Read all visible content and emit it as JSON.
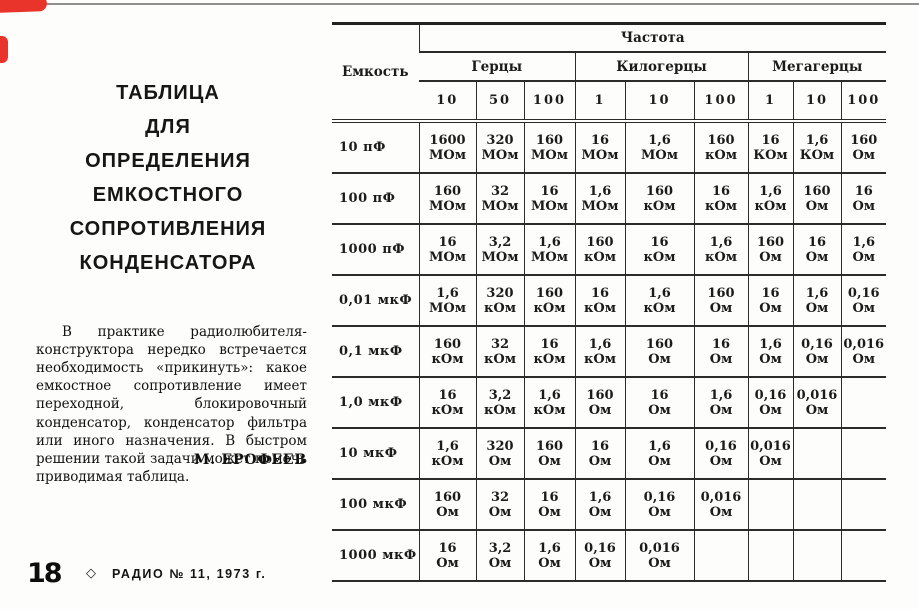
{
  "page": {
    "background": "#fdfdfc",
    "ink": "#1d1d1d",
    "accent_red": "#e8342a"
  },
  "left_column": {
    "title_lines": [
      "ТАБЛИЦА",
      "ДЛЯ",
      "ОПРЕДЕЛЕНИЯ",
      "ЕМКОСТНОГО",
      "СОПРОТИВЛЕНИЯ",
      "КОНДЕНСАТОРА"
    ],
    "intro_paragraph": "В практике радиолюбителя-конструктора нередко встречается необходимость «прикинуть»: какое емкостное сопротивление имеет переходной, блокировочный конденсатор, конденсатор фильтра или иного назначения. В быстром решении такой задачи может помочь приводимая таблица.",
    "author": "М. ЕРОФЕЕВ"
  },
  "table": {
    "capacity_header": "Емкость",
    "frequency_header": "Частота",
    "unit_groups": [
      {
        "label": "Герцы"
      },
      {
        "label": "Килогерцы"
      },
      {
        "label": "Мегагерцы"
      }
    ],
    "ticks": [
      "10",
      "50",
      "100",
      "1",
      "10",
      "100",
      "1",
      "10",
      "100"
    ],
    "rows": [
      {
        "capacity": "10 пФ",
        "cells": [
          {
            "value": "1600",
            "unit": "МОм"
          },
          {
            "value": "320",
            "unit": "МОм"
          },
          {
            "value": "160",
            "unit": "МОм"
          },
          {
            "value": "16",
            "unit": "МОм"
          },
          {
            "value": "1,6",
            "unit": "МОм"
          },
          {
            "value": "160",
            "unit": "кОм"
          },
          {
            "value": "16",
            "unit": "КОм"
          },
          {
            "value": "1,6",
            "unit": "КОм"
          },
          {
            "value": "160",
            "unit": "Ом"
          }
        ]
      },
      {
        "capacity": "100 пФ",
        "cells": [
          {
            "value": "160",
            "unit": "МОм"
          },
          {
            "value": "32",
            "unit": "МОм"
          },
          {
            "value": "16",
            "unit": "МОм"
          },
          {
            "value": "1,6",
            "unit": "МОм"
          },
          {
            "value": "160",
            "unit": "кОм"
          },
          {
            "value": "16",
            "unit": "кОм"
          },
          {
            "value": "1,6",
            "unit": "кОм"
          },
          {
            "value": "160",
            "unit": "Ом"
          },
          {
            "value": "16",
            "unit": "Ом"
          }
        ]
      },
      {
        "capacity": "1000 пФ",
        "cells": [
          {
            "value": "16",
            "unit": "МОм"
          },
          {
            "value": "3,2",
            "unit": "МОм"
          },
          {
            "value": "1,6",
            "unit": "МОм"
          },
          {
            "value": "160",
            "unit": "кОм"
          },
          {
            "value": "16",
            "unit": "кОм"
          },
          {
            "value": "1,6",
            "unit": "кОм"
          },
          {
            "value": "160",
            "unit": "Ом"
          },
          {
            "value": "16",
            "unit": "Ом"
          },
          {
            "value": "1,6",
            "unit": "Ом"
          }
        ]
      },
      {
        "capacity": "0,01 мкФ",
        "cells": [
          {
            "value": "1,6",
            "unit": "МОм"
          },
          {
            "value": "320",
            "unit": "кОм"
          },
          {
            "value": "160",
            "unit": "кОм"
          },
          {
            "value": "16",
            "unit": "кОм"
          },
          {
            "value": "1,6",
            "unit": "кОм"
          },
          {
            "value": "160",
            "unit": "Ом"
          },
          {
            "value": "16",
            "unit": "Ом"
          },
          {
            "value": "1,6",
            "unit": "Ом"
          },
          {
            "value": "0,16",
            "unit": "Ом"
          }
        ]
      },
      {
        "capacity": "0,1 мкФ",
        "cells": [
          {
            "value": "160",
            "unit": "кОм"
          },
          {
            "value": "32",
            "unit": "кОм"
          },
          {
            "value": "16",
            "unit": "кОм"
          },
          {
            "value": "1,6",
            "unit": "кОм"
          },
          {
            "value": "160",
            "unit": "Ом"
          },
          {
            "value": "16",
            "unit": "Ом"
          },
          {
            "value": "1,6",
            "unit": "Ом"
          },
          {
            "value": "0,16",
            "unit": "Ом"
          },
          {
            "value": "0,016",
            "unit": "Ом"
          }
        ]
      },
      {
        "capacity": "1,0 мкФ",
        "cells": [
          {
            "value": "16",
            "unit": "кОм"
          },
          {
            "value": "3,2",
            "unit": "кОм"
          },
          {
            "value": "1,6",
            "unit": "кОм"
          },
          {
            "value": "160",
            "unit": "Ом"
          },
          {
            "value": "16",
            "unit": "Ом"
          },
          {
            "value": "1,6",
            "unit": "Ом"
          },
          {
            "value": "0,16",
            "unit": "Ом"
          },
          {
            "value": "0,016",
            "unit": "Ом"
          },
          {
            "value": "",
            "unit": ""
          }
        ]
      },
      {
        "capacity": "10 мкФ",
        "cells": [
          {
            "value": "1,6",
            "unit": "кОм"
          },
          {
            "value": "320",
            "unit": "Ом"
          },
          {
            "value": "160",
            "unit": "Ом"
          },
          {
            "value": "16",
            "unit": "Ом"
          },
          {
            "value": "1,6",
            "unit": "Ом"
          },
          {
            "value": "0,16",
            "unit": "Ом"
          },
          {
            "value": "0,016",
            "unit": "Ом"
          },
          {
            "value": "",
            "unit": ""
          },
          {
            "value": "",
            "unit": ""
          }
        ]
      },
      {
        "capacity": "100 мкФ",
        "cells": [
          {
            "value": "160",
            "unit": "Ом"
          },
          {
            "value": "32",
            "unit": "Ом"
          },
          {
            "value": "16",
            "unit": "Ом"
          },
          {
            "value": "1,6",
            "unit": "Ом"
          },
          {
            "value": "0,16",
            "unit": "Ом"
          },
          {
            "value": "0,016",
            "unit": "Ом"
          },
          {
            "value": "",
            "unit": ""
          },
          {
            "value": "",
            "unit": ""
          },
          {
            "value": "",
            "unit": ""
          }
        ]
      },
      {
        "capacity": "1000 мкФ",
        "cells": [
          {
            "value": "16",
            "unit": "Ом"
          },
          {
            "value": "3,2",
            "unit": "Ом"
          },
          {
            "value": "1,6",
            "unit": "Ом"
          },
          {
            "value": "0,16",
            "unit": "Ом"
          },
          {
            "value": "0,016",
            "unit": "Ом"
          },
          {
            "value": "",
            "unit": ""
          },
          {
            "value": "",
            "unit": ""
          },
          {
            "value": "",
            "unit": ""
          },
          {
            "value": "",
            "unit": ""
          }
        ]
      }
    ]
  },
  "footer": {
    "page_number": "18",
    "diamond": "◇",
    "journal": "РАДИО № 11, 1973 г."
  }
}
